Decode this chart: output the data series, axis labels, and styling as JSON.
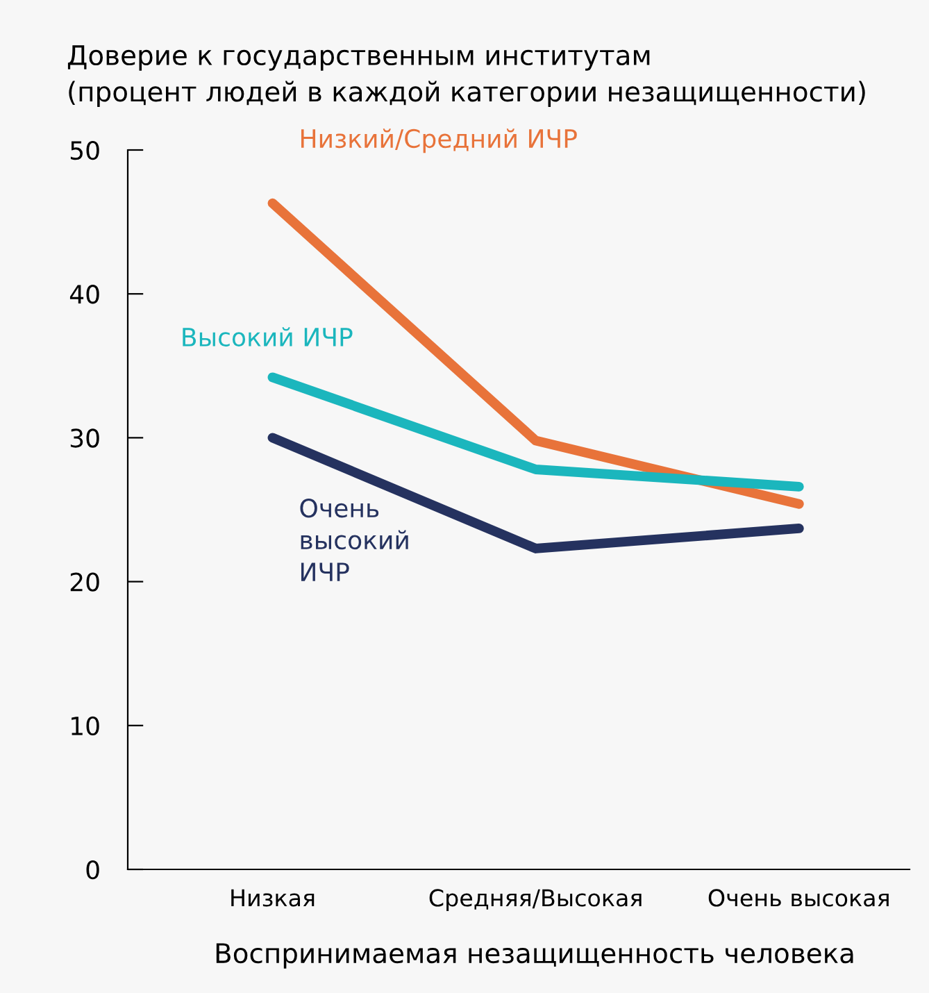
{
  "chart_data": {
    "type": "line",
    "title": "Доверие к государственным институтам\n(процент людей в каждой категории незащищенности)",
    "xlabel": "Воспринимаемая незащищенность человека",
    "categories": [
      "Низкая",
      "Средняя/Высокая",
      "Очень высокая"
    ],
    "series": [
      {
        "name": "Низкий/Средний ИЧР",
        "color": "#e8733a",
        "values": [
          46.3,
          29.8,
          25.4
        ]
      },
      {
        "name": "Высокий ИЧР",
        "color": "#1bb6bd",
        "values": [
          34.2,
          27.8,
          26.6
        ]
      },
      {
        "name": "Очень\nвысокий\nИЧР",
        "color": "#25325f",
        "values": [
          30.0,
          22.3,
          23.7
        ]
      }
    ],
    "ylim": [
      0,
      50
    ],
    "yticks": [
      0,
      10,
      20,
      30,
      40,
      50
    ],
    "grid": false,
    "legend": false,
    "marker": "none",
    "line_style": "solid"
  }
}
